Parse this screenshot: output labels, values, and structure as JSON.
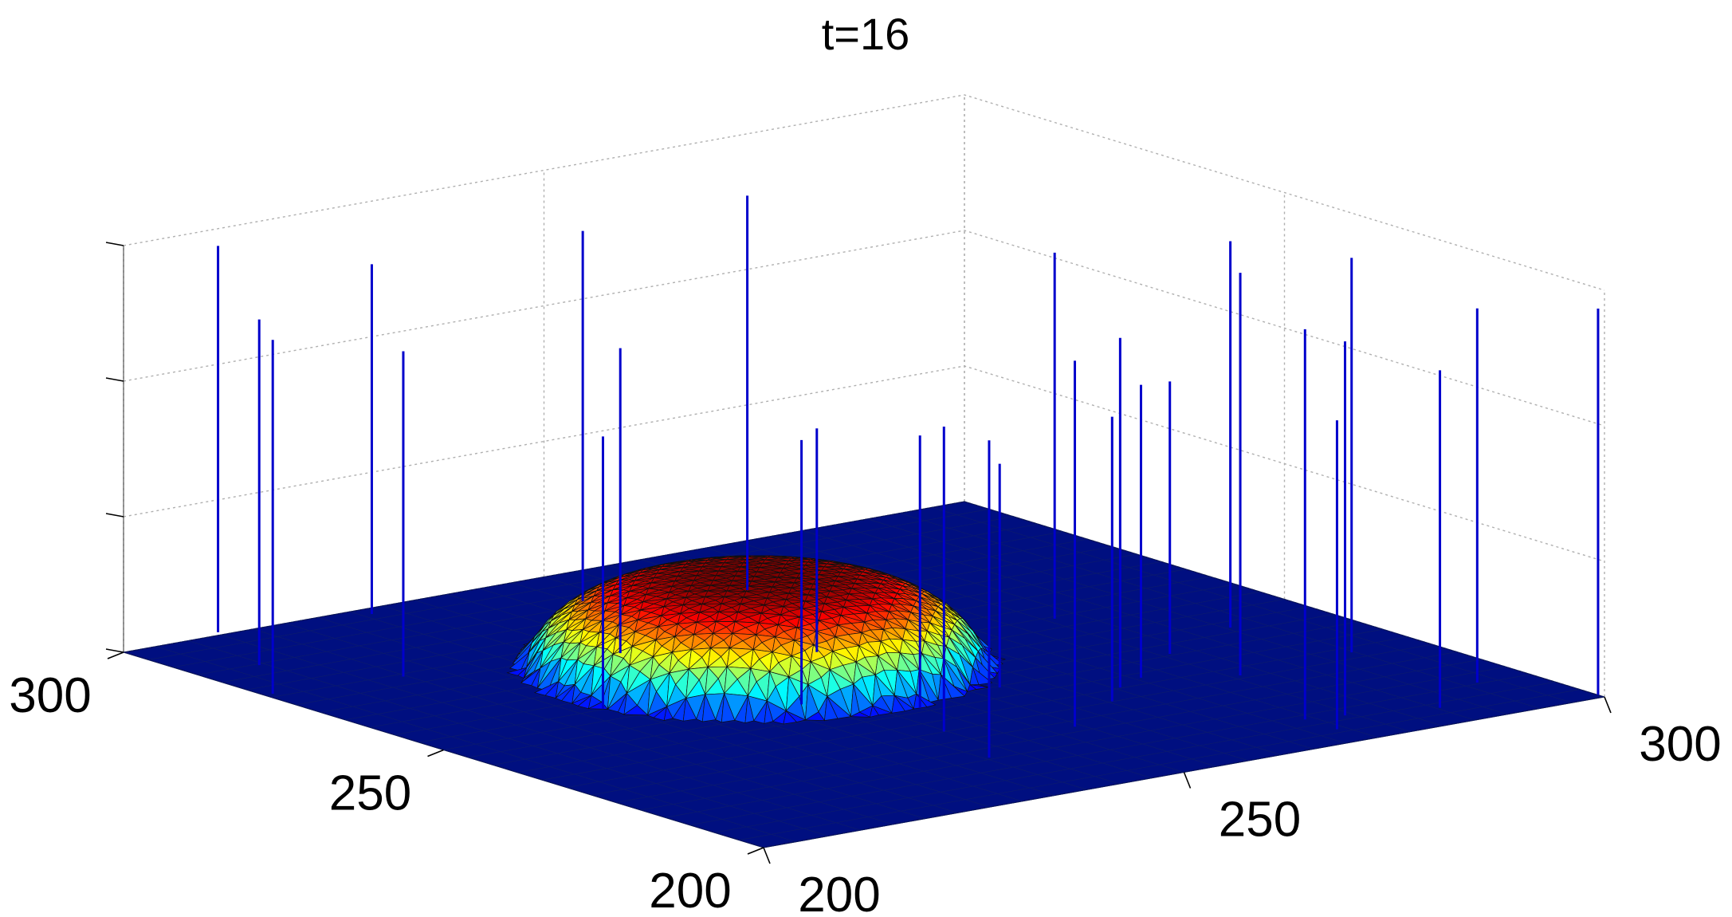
{
  "chart_data": {
    "type": "surface3d",
    "title": "t=16",
    "xlabel": "",
    "ylabel": "",
    "zlabel": "",
    "x_axis": {
      "range": [
        200,
        300
      ],
      "ticks": [
        200,
        250,
        300
      ],
      "tick_labels": [
        "200",
        "250",
        "300"
      ]
    },
    "y_axis": {
      "range": [
        200,
        300
      ],
      "ticks": [
        200,
        250,
        300
      ],
      "tick_labels": [
        "200",
        "250",
        "300"
      ]
    },
    "z_axis": {
      "tick_count": 4,
      "tick_labels": []
    },
    "grid": true,
    "colormap": "jet",
    "surface": {
      "description_shape": "dome",
      "center": [
        244,
        259
      ],
      "radius": 22,
      "peak_height": 0.22,
      "base_color": "#000f80"
    },
    "stems": {
      "color": "#0000cc",
      "points": [
        {
          "x": 212,
          "y": 301,
          "h": 0.95
        },
        {
          "x": 215,
          "y": 276,
          "h": 0.8
        },
        {
          "x": 222,
          "y": 254,
          "h": 0.67
        },
        {
          "x": 228,
          "y": 298,
          "h": 0.86
        },
        {
          "x": 237,
          "y": 271,
          "h": 0.75
        },
        {
          "x": 247,
          "y": 290,
          "h": 0.91
        },
        {
          "x": 238,
          "y": 244,
          "h": 0.65
        },
        {
          "x": 246,
          "y": 236,
          "h": 0.67
        },
        {
          "x": 242,
          "y": 227,
          "h": 0.75
        },
        {
          "x": 257,
          "y": 238,
          "h": 0.55
        },
        {
          "x": 252,
          "y": 260,
          "h": 0.55
        },
        {
          "x": 262,
          "y": 284,
          "h": 0.97
        },
        {
          "x": 262,
          "y": 227,
          "h": 0.7
        },
        {
          "x": 266,
          "y": 231,
          "h": 0.86
        },
        {
          "x": 278,
          "y": 257,
          "h": 0.9
        },
        {
          "x": 270,
          "y": 233,
          "h": 0.72
        },
        {
          "x": 278,
          "y": 239,
          "h": 0.67
        },
        {
          "x": 272,
          "y": 210,
          "h": 0.96
        },
        {
          "x": 289,
          "y": 244,
          "h": 0.95
        },
        {
          "x": 292,
          "y": 229,
          "h": 0.97
        },
        {
          "x": 278,
          "y": 228,
          "h": 0.99
        },
        {
          "x": 276,
          "y": 209,
          "h": 0.92
        },
        {
          "x": 272,
          "y": 205,
          "h": 0.76
        },
        {
          "x": 285,
          "y": 206,
          "h": 0.83
        },
        {
          "x": 294,
          "y": 212,
          "h": 0.92
        },
        {
          "x": 253,
          "y": 221,
          "h": 0.9
        },
        {
          "x": 239,
          "y": 216,
          "h": 0.78
        },
        {
          "x": 201,
          "y": 278,
          "h": 0.87
        },
        {
          "x": 207,
          "y": 288,
          "h": 0.85
        },
        {
          "x": 300,
          "y": 201,
          "h": 0.95
        }
      ]
    }
  }
}
